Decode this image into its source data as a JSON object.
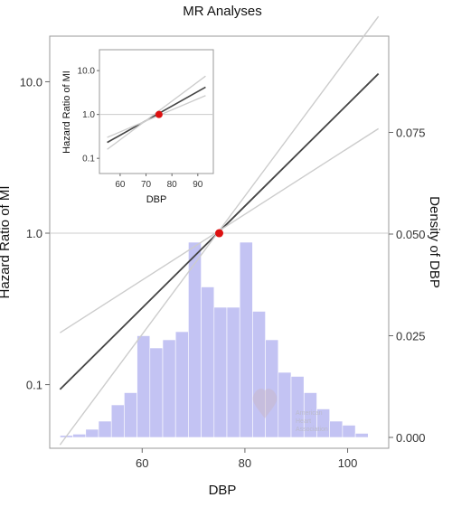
{
  "chart_data": {
    "type": "line",
    "title": "MR Analyses",
    "xlabel": "DBP",
    "ylabel": "Hazard Ratio of MI",
    "y2label": "Density of DBP",
    "x_ticks": [
      60,
      80,
      100
    ],
    "y_ticks": [
      0.1,
      1.0,
      10.0
    ],
    "y_tick_labels": [
      "0.1",
      "1.0",
      "10.0"
    ],
    "y2_ticks": [
      0.0,
      0.025,
      0.05,
      0.075
    ],
    "y2_tick_labels": [
      "0.000",
      "0.025",
      "0.050",
      "0.075"
    ],
    "xlim": [
      42,
      108
    ],
    "ylim_log": [
      0.038,
      20
    ],
    "y2lim": [
      0,
      0.1
    ],
    "y_scale": "log",
    "reference_point": {
      "x": 75,
      "y": 1.0,
      "color": "#dd1111"
    },
    "reference_line_y": 1.0,
    "series": [
      {
        "role": "estimate",
        "x": [
          44,
          106
        ],
        "y": [
          0.093,
          11.3
        ],
        "color": "#444444"
      },
      {
        "role": "ci-upper",
        "x": [
          44,
          106
        ],
        "y": [
          0.22,
          4.9
        ],
        "color": "#cccccc"
      },
      {
        "role": "ci-lower",
        "x": [
          44,
          106
        ],
        "y": [
          0.04,
          27
        ],
        "color": "#cccccc"
      }
    ],
    "histogram": {
      "bin_width": 2.5,
      "bin_starts": [
        44,
        46.5,
        49,
        51.5,
        54,
        56.5,
        59,
        61.5,
        64,
        66.5,
        69,
        71.5,
        74,
        76.5,
        79,
        81.5,
        84,
        86.5,
        89,
        91.5,
        94,
        96.5,
        99,
        101.5
      ],
      "density": [
        0.0005,
        0.0008,
        0.002,
        0.004,
        0.008,
        0.011,
        0.025,
        0.022,
        0.024,
        0.026,
        0.048,
        0.037,
        0.032,
        0.032,
        0.048,
        0.031,
        0.024,
        0.016,
        0.015,
        0.011,
        0.007,
        0.004,
        0.003,
        0.001
      ],
      "color": "#aaaaee"
    },
    "grid": false,
    "watermark": [
      "American",
      "Heart",
      "Association"
    ],
    "inset": {
      "xlabel": "DBP",
      "ylabel": "Hazard Ratio of MI",
      "x_ticks": [
        60,
        70,
        80,
        90
      ],
      "y_ticks": [
        0.1,
        1.0,
        10.0
      ],
      "y_tick_labels": [
        "0.1",
        "1.0",
        "10.0"
      ],
      "xlim": [
        52,
        96
      ],
      "ylim_log": [
        0.045,
        30
      ],
      "y_scale": "log",
      "reference_point": {
        "x": 75,
        "y": 1.0
      },
      "reference_line_y": 1.0,
      "series": [
        {
          "role": "estimate",
          "x": [
            55,
            93
          ],
          "y": [
            0.23,
            4.2
          ],
          "color": "#444444"
        },
        {
          "role": "ci-upper",
          "x": [
            55,
            93
          ],
          "y": [
            0.3,
            2.7
          ],
          "color": "#cccccc"
        },
        {
          "role": "ci-lower",
          "x": [
            55,
            93
          ],
          "y": [
            0.16,
            7.5
          ],
          "color": "#cccccc"
        }
      ]
    }
  }
}
